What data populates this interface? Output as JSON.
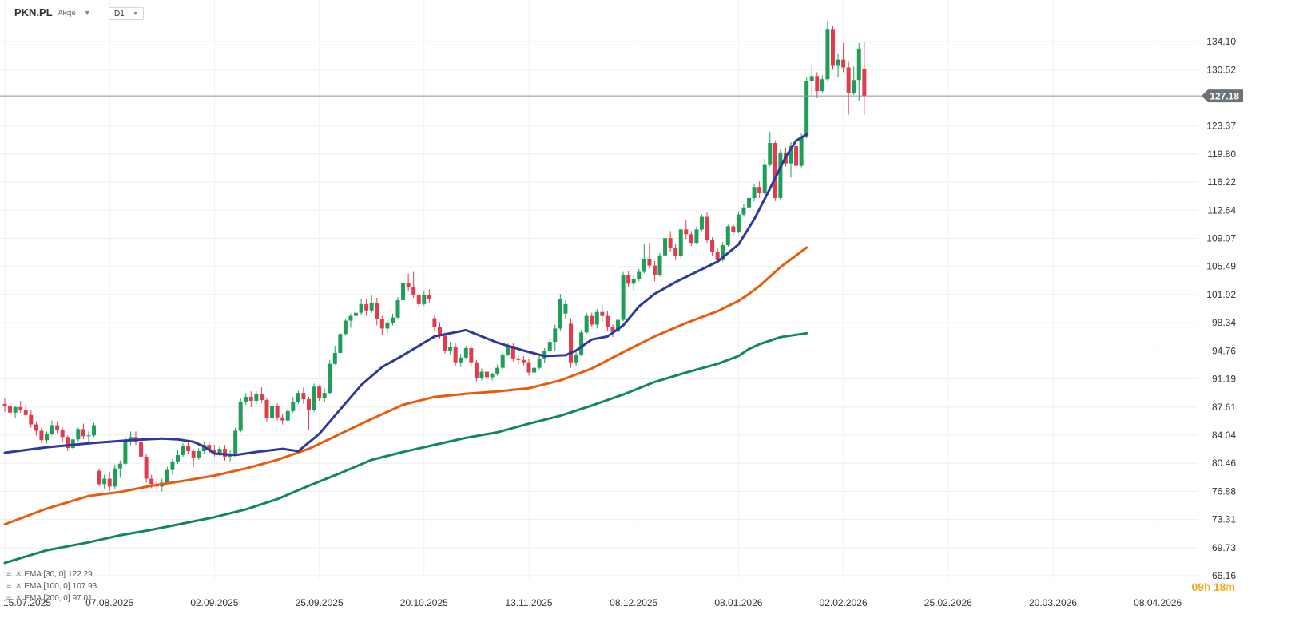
{
  "header": {
    "symbol": "PKN.PL",
    "type": "Akcje",
    "timeframe": "D1"
  },
  "timer": {
    "hours": "09",
    "h_unit": "h",
    "minutes": "18",
    "m_unit": "m"
  },
  "colors": {
    "up": "#1e9e58",
    "down": "#e23a4e",
    "ema30": "#2e3a99",
    "ema100": "#ea5a0c",
    "ema200": "#0f8a55",
    "price_line": "#8a9196",
    "price_tag": "#6b7378"
  },
  "chart_data": {
    "type": "candlestick",
    "title": "PKN.PL D1",
    "y_range": [
      66.16,
      137.5
    ],
    "y_ticks": [
      "134.10",
      "130.52",
      "123.37",
      "119.80",
      "116.22",
      "112.64",
      "109.07",
      "105.49",
      "101.92",
      "98.34",
      "94.76",
      "91.19",
      "87.61",
      "84.04",
      "80.46",
      "76.88",
      "73.31",
      "69.73",
      "66.16"
    ],
    "x_labels": [
      "15.07.2025",
      "07.08.2025",
      "02.09.2025",
      "25.09.2025",
      "20.10.2025",
      "13.11.2025",
      "08.12.2025",
      "08.01.2026",
      "02.02.2026",
      "25.02.2026",
      "20.03.2026",
      "08.04.2026"
    ],
    "x_label_index": [
      0,
      20,
      40,
      60,
      80,
      100,
      120,
      140,
      160,
      180,
      200,
      220
    ],
    "current_price": "127.18",
    "legend": [
      {
        "label": "EMA [30, 0]",
        "value": "122.29"
      },
      {
        "label": "EMA [100, 0]",
        "value": "107.93"
      },
      {
        "label": "EMA [200, 0]",
        "value": "97.01"
      }
    ],
    "candles_ohlc": [
      [
        88.0,
        88.7,
        87.0,
        87.8
      ],
      [
        87.8,
        88.3,
        86.4,
        86.9
      ],
      [
        86.9,
        87.8,
        86.2,
        87.6
      ],
      [
        87.6,
        88.4,
        86.9,
        87.2
      ],
      [
        87.2,
        88.0,
        86.3,
        86.6
      ],
      [
        86.6,
        87.2,
        85.0,
        85.4
      ],
      [
        85.4,
        85.8,
        84.0,
        84.6
      ],
      [
        84.6,
        85.0,
        83.0,
        83.4
      ],
      [
        83.4,
        84.5,
        83.0,
        84.2
      ],
      [
        84.2,
        85.9,
        84.0,
        85.3
      ],
      [
        85.3,
        85.8,
        84.3,
        84.7
      ],
      [
        84.7,
        85.0,
        83.2,
        83.8
      ],
      [
        83.8,
        84.0,
        82.0,
        82.4
      ],
      [
        82.4,
        83.8,
        82.2,
        83.5
      ],
      [
        83.5,
        85.0,
        83.2,
        84.8
      ],
      [
        84.8,
        85.5,
        83.5,
        83.9
      ],
      [
        83.9,
        84.5,
        83.0,
        84.0
      ],
      [
        84.0,
        85.6,
        83.8,
        85.3
      ],
      [
        79.5,
        79.8,
        77.5,
        77.8
      ],
      [
        77.8,
        79.0,
        77.2,
        78.5
      ],
      [
        78.5,
        79.4,
        76.9,
        77.5
      ],
      [
        77.5,
        80.3,
        77.2,
        79.8
      ],
      [
        79.8,
        80.8,
        78.6,
        80.4
      ],
      [
        80.4,
        83.8,
        80.2,
        83.3
      ],
      [
        83.3,
        84.5,
        82.8,
        83.8
      ],
      [
        83.8,
        84.5,
        82.8,
        83.2
      ],
      [
        83.2,
        83.6,
        81.0,
        81.3
      ],
      [
        81.3,
        81.6,
        78.0,
        78.5
      ],
      [
        78.5,
        79.0,
        77.3,
        77.8
      ],
      [
        77.8,
        78.5,
        77.0,
        77.5
      ],
      [
        77.5,
        78.5,
        76.9,
        78.0
      ],
      [
        78.0,
        80.0,
        77.8,
        79.6
      ],
      [
        79.6,
        81.0,
        79.0,
        80.7
      ],
      [
        80.7,
        82.2,
        80.4,
        81.5
      ],
      [
        81.5,
        83.0,
        81.3,
        82.7
      ],
      [
        82.7,
        83.2,
        81.6,
        82.0
      ],
      [
        82.0,
        82.3,
        80.0,
        81.2
      ],
      [
        81.2,
        82.4,
        80.9,
        82.0
      ],
      [
        82.0,
        83.2,
        81.6,
        82.8
      ],
      [
        82.8,
        83.2,
        81.6,
        82.2
      ],
      [
        82.2,
        82.8,
        81.3,
        81.8
      ],
      [
        81.8,
        82.7,
        81.4,
        82.3
      ],
      [
        82.3,
        82.8,
        80.8,
        81.3
      ],
      [
        81.3,
        82.1,
        80.6,
        81.7
      ],
      [
        81.7,
        85.0,
        81.5,
        84.6
      ],
      [
        84.6,
        88.8,
        84.4,
        88.3
      ],
      [
        88.3,
        89.4,
        87.9,
        88.9
      ],
      [
        88.9,
        89.6,
        87.6,
        88.4
      ],
      [
        88.4,
        89.6,
        88.0,
        89.3
      ],
      [
        89.3,
        90.1,
        88.1,
        88.5
      ],
      [
        88.5,
        88.8,
        85.8,
        86.2
      ],
      [
        86.2,
        88.2,
        86.0,
        87.7
      ],
      [
        87.7,
        88.1,
        85.9,
        86.3
      ],
      [
        86.3,
        86.8,
        85.4,
        85.9
      ],
      [
        85.9,
        87.4,
        85.7,
        87.1
      ],
      [
        87.1,
        88.9,
        86.9,
        88.3
      ],
      [
        88.3,
        89.7,
        88.0,
        89.4
      ],
      [
        89.4,
        90.1,
        88.0,
        88.6
      ],
      [
        88.6,
        88.9,
        84.7,
        87.2
      ],
      [
        87.2,
        90.6,
        87.0,
        90.2
      ],
      [
        90.2,
        90.4,
        88.4,
        88.8
      ],
      [
        88.8,
        90.0,
        88.3,
        89.4
      ],
      [
        89.4,
        93.6,
        89.2,
        93.1
      ],
      [
        93.1,
        95.4,
        93.0,
        94.5
      ],
      [
        94.5,
        97.1,
        94.3,
        96.9
      ],
      [
        96.9,
        98.9,
        96.7,
        98.6
      ],
      [
        98.6,
        99.5,
        97.7,
        99.2
      ],
      [
        99.2,
        99.8,
        98.6,
        99.6
      ],
      [
        99.6,
        101.3,
        99.3,
        100.7
      ],
      [
        100.7,
        101.3,
        99.2,
        99.9
      ],
      [
        99.9,
        101.8,
        99.6,
        100.8
      ],
      [
        100.8,
        101.5,
        98.0,
        98.8
      ],
      [
        98.8,
        99.2,
        96.8,
        97.6
      ],
      [
        97.6,
        98.6,
        97.0,
        98.3
      ],
      [
        98.3,
        99.5,
        98.0,
        99.0
      ],
      [
        99.0,
        101.6,
        98.8,
        101.2
      ],
      [
        101.2,
        104.1,
        101.0,
        103.4
      ],
      [
        103.4,
        104.6,
        102.3,
        102.9
      ],
      [
        102.9,
        104.8,
        101.5,
        101.8
      ],
      [
        101.8,
        102.1,
        100.4,
        100.7
      ],
      [
        100.7,
        102.3,
        100.5,
        101.9
      ],
      [
        101.9,
        102.6,
        100.9,
        101.3
      ],
      [
        98.9,
        99.2,
        97.3,
        97.8
      ],
      [
        97.8,
        98.4,
        96.3,
        96.7
      ],
      [
        96.7,
        97.1,
        94.4,
        94.8
      ],
      [
        94.8,
        95.9,
        94.3,
        95.3
      ],
      [
        95.3,
        95.8,
        92.8,
        93.3
      ],
      [
        93.3,
        94.4,
        92.7,
        93.9
      ],
      [
        93.9,
        95.4,
        93.7,
        95.1
      ],
      [
        95.1,
        95.4,
        92.8,
        93.3
      ],
      [
        93.3,
        93.6,
        90.9,
        91.3
      ],
      [
        91.3,
        92.5,
        91.0,
        92.1
      ],
      [
        92.1,
        92.5,
        90.8,
        91.4
      ],
      [
        91.4,
        92.0,
        91.0,
        91.8
      ],
      [
        91.8,
        93.0,
        91.6,
        92.6
      ],
      [
        92.6,
        94.7,
        92.4,
        94.3
      ],
      [
        94.3,
        95.7,
        94.1,
        95.4
      ],
      [
        95.4,
        95.8,
        93.4,
        93.8
      ],
      [
        93.8,
        94.3,
        93.0,
        93.6
      ],
      [
        93.6,
        94.1,
        92.9,
        93.3
      ],
      [
        93.3,
        93.8,
        91.6,
        92.0
      ],
      [
        92.0,
        93.4,
        91.5,
        92.6
      ],
      [
        92.6,
        94.1,
        92.4,
        93.8
      ],
      [
        93.8,
        95.1,
        93.2,
        94.7
      ],
      [
        94.7,
        96.3,
        94.5,
        95.9
      ],
      [
        95.9,
        98.1,
        94.8,
        97.6
      ],
      [
        97.6,
        102.0,
        97.3,
        101.3
      ],
      [
        99.5,
        101.2,
        98.8,
        100.7
      ],
      [
        98.2,
        98.9,
        92.6,
        93.3
      ],
      [
        93.3,
        94.8,
        92.8,
        94.3
      ],
      [
        94.3,
        97.4,
        94.1,
        97.1
      ],
      [
        97.1,
        99.6,
        96.9,
        99.2
      ],
      [
        99.2,
        99.6,
        97.8,
        98.1
      ],
      [
        98.1,
        100.1,
        97.6,
        99.7
      ],
      [
        99.7,
        100.6,
        98.5,
        99.2
      ],
      [
        99.2,
        99.8,
        97.3,
        97.8
      ],
      [
        97.8,
        98.1,
        96.5,
        97.2
      ],
      [
        97.2,
        99.1,
        96.9,
        98.7
      ],
      [
        98.7,
        104.8,
        98.5,
        104.4
      ],
      [
        104.4,
        104.9,
        102.9,
        103.3
      ],
      [
        103.3,
        104.4,
        102.5,
        103.9
      ],
      [
        103.9,
        105.2,
        103.6,
        104.8
      ],
      [
        104.8,
        108.4,
        104.6,
        106.4
      ],
      [
        106.4,
        108.5,
        105.2,
        105.6
      ],
      [
        105.6,
        106.2,
        103.6,
        104.4
      ],
      [
        104.4,
        107.2,
        104.2,
        106.9
      ],
      [
        106.9,
        109.4,
        106.7,
        109.1
      ],
      [
        109.1,
        110.0,
        107.4,
        107.8
      ],
      [
        107.8,
        108.4,
        106.3,
        106.8
      ],
      [
        106.8,
        110.4,
        106.5,
        110.2
      ],
      [
        110.2,
        111.4,
        109.0,
        109.6
      ],
      [
        109.6,
        110.0,
        108.1,
        108.5
      ],
      [
        108.5,
        110.6,
        108.3,
        110.2
      ],
      [
        110.2,
        112.1,
        110.0,
        111.8
      ],
      [
        111.8,
        112.4,
        108.5,
        108.9
      ],
      [
        108.9,
        109.2,
        106.8,
        107.3
      ],
      [
        107.3,
        107.8,
        105.9,
        106.3
      ],
      [
        106.3,
        108.6,
        106.1,
        108.2
      ],
      [
        108.2,
        110.8,
        108.0,
        110.6
      ],
      [
        110.6,
        111.0,
        109.5,
        109.9
      ],
      [
        109.9,
        112.5,
        109.7,
        112.1
      ],
      [
        112.1,
        113.4,
        111.8,
        113.0
      ],
      [
        113.0,
        114.5,
        112.7,
        114.2
      ],
      [
        114.2,
        116.0,
        113.8,
        115.6
      ],
      [
        115.6,
        116.3,
        114.2,
        114.8
      ],
      [
        114.8,
        119.2,
        114.6,
        118.4
      ],
      [
        118.4,
        122.6,
        118.2,
        121.2
      ],
      [
        121.2,
        121.5,
        113.8,
        114.2
      ],
      [
        114.2,
        120.4,
        114.0,
        120.0
      ],
      [
        120.0,
        120.6,
        118.2,
        118.6
      ],
      [
        118.6,
        121.3,
        116.8,
        120.8
      ],
      [
        120.8,
        121.3,
        117.7,
        118.3
      ],
      [
        118.3,
        122.4,
        118.1,
        122.0
      ],
      [
        122.0,
        129.5,
        121.8,
        129.1
      ],
      [
        129.1,
        131.1,
        127.0,
        129.7
      ],
      [
        129.7,
        130.2,
        126.9,
        127.8
      ],
      [
        127.8,
        129.8,
        127.5,
        129.3
      ],
      [
        129.3,
        136.7,
        129.0,
        135.7
      ],
      [
        135.7,
        136.1,
        130.5,
        131.0
      ],
      [
        131.0,
        132.5,
        129.6,
        131.8
      ],
      [
        131.8,
        133.9,
        130.2,
        130.8
      ],
      [
        130.8,
        131.5,
        124.8,
        127.6
      ],
      [
        127.6,
        130.9,
        127.3,
        129.2
      ],
      [
        129.2,
        133.9,
        126.6,
        133.2
      ],
      [
        130.6,
        134.1,
        124.8,
        127.2
      ]
    ],
    "ema30": [
      81.8,
      82.5,
      83.0,
      83.4,
      83.6,
      83.5,
      83.2,
      82.6,
      81.7,
      81.5,
      81.9,
      82.3,
      82.0,
      84.2,
      87.3,
      90.4,
      92.7,
      94.2,
      96.6,
      97.4,
      95.8,
      94.8,
      94.1,
      94.2,
      94.8,
      96.2,
      96.6,
      98.0,
      100.4,
      102.0,
      103.5,
      104.8,
      106.1,
      108.3,
      111.5,
      115.4,
      119.4,
      121.5,
      122.3
    ],
    "ema30_idx": [
      0,
      8,
      16,
      24,
      30,
      33,
      36,
      38,
      40,
      44,
      48,
      53,
      56,
      60,
      64,
      68,
      72,
      76,
      82,
      88,
      94,
      99,
      103,
      107,
      109,
      112,
      115,
      118,
      121,
      124,
      128,
      132,
      136,
      140,
      143,
      146,
      149,
      151,
      153
    ],
    "ema100": [
      72.7,
      74.7,
      76.3,
      76.8,
      77.6,
      78.2,
      78.9,
      79.8,
      80.9,
      82.3,
      84.2,
      86.1,
      87.9,
      88.9,
      89.3,
      89.6,
      90.0,
      91.0,
      92.5,
      94.6,
      96.6,
      98.3,
      99.8,
      101.1,
      102.0,
      103.0,
      105.4,
      107.9
    ],
    "ema100_idx": [
      0,
      8,
      16,
      22,
      28,
      34,
      40,
      46,
      52,
      58,
      64,
      70,
      76,
      82,
      88,
      94,
      100,
      106,
      112,
      118,
      124,
      130,
      136,
      140,
      142,
      144,
      148,
      153
    ],
    "ema200": [
      67.8,
      69.4,
      70.4,
      71.3,
      72.0,
      72.8,
      73.6,
      74.6,
      75.9,
      77.6,
      79.2,
      80.9,
      81.9,
      82.8,
      83.7,
      84.4,
      85.5,
      86.5,
      87.8,
      89.2,
      90.8,
      92.0,
      93.1,
      94.1,
      95.0,
      95.6,
      96.5,
      97.0
    ],
    "ema200_idx": [
      0,
      8,
      16,
      22,
      28,
      34,
      40,
      46,
      52,
      58,
      64,
      70,
      76,
      82,
      88,
      94,
      100,
      106,
      112,
      118,
      124,
      130,
      136,
      140,
      142,
      144,
      148,
      153
    ]
  }
}
